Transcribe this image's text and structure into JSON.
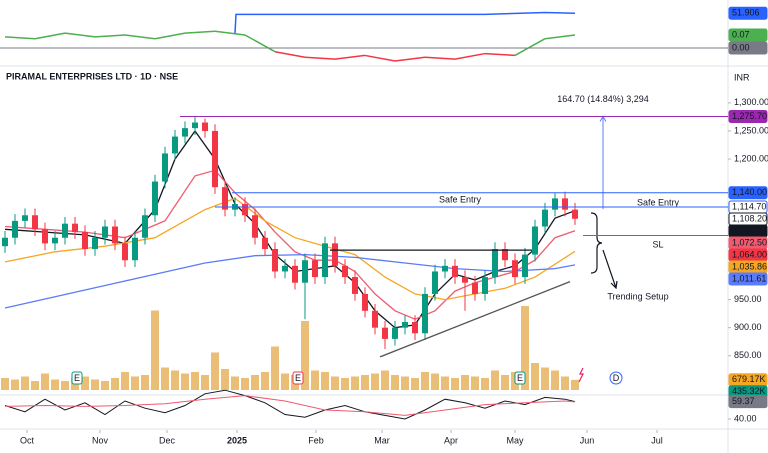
{
  "header": {
    "title": "PIRAMAL ENTERPRISES LTD · 1D · NSE",
    "currency": "INR"
  },
  "chart_data": [
    {
      "type": "candlestick",
      "up_color": "#089981",
      "down_color": "#f23645",
      "xlim": [
        -0.5,
        72.3
      ],
      "ylim": [
        830,
        1330
      ],
      "xticks": [
        {
          "value": 2.2,
          "label": "Oct"
        },
        {
          "value": 9.5,
          "label": "Nov"
        },
        {
          "value": 16.2,
          "label": "Dec"
        },
        {
          "value": 23.2,
          "label": "2025"
        },
        {
          "value": 31.1,
          "label": "Feb"
        },
        {
          "value": 37.7,
          "label": "Mar"
        },
        {
          "value": 44.6,
          "label": "Apr"
        },
        {
          "value": 51,
          "label": "May"
        },
        {
          "value": 58.2,
          "label": "Jun"
        },
        {
          "value": 65.2,
          "label": "Jul"
        }
      ],
      "yticks": [
        {
          "value": 1300,
          "label": "1,300.00"
        },
        {
          "value": 1250,
          "label": "1,250.00"
        },
        {
          "value": 1200,
          "label": "1,200.00"
        },
        {
          "value": 950,
          "label": "950.00"
        },
        {
          "value": 900,
          "label": "900.00"
        },
        {
          "value": 850,
          "label": "850.00"
        }
      ],
      "ohlc": [
        [
          1045,
          1072,
          1033,
          1060
        ],
        [
          1060,
          1102,
          1048,
          1090
        ],
        [
          1090,
          1112,
          1078,
          1100
        ],
        [
          1100,
          1112,
          1063,
          1075
        ],
        [
          1075,
          1087,
          1038,
          1050
        ],
        [
          1050,
          1072,
          1038,
          1060
        ],
        [
          1060,
          1097,
          1048,
          1085
        ],
        [
          1085,
          1097,
          1058,
          1070
        ],
        [
          1070,
          1082,
          1028,
          1040
        ],
        [
          1040,
          1072,
          1028,
          1060
        ],
        [
          1060,
          1092,
          1048,
          1080
        ],
        [
          1080,
          1092,
          1038,
          1050
        ],
        [
          1050,
          1062,
          1008,
          1020
        ],
        [
          1020,
          1072,
          1008,
          1060
        ],
        [
          1060,
          1112,
          1048,
          1100
        ],
        [
          1100,
          1172,
          1088,
          1160
        ],
        [
          1160,
          1222,
          1148,
          1210
        ],
        [
          1210,
          1252,
          1198,
          1240
        ],
        [
          1240,
          1267,
          1228,
          1255
        ],
        [
          1255,
          1275.7,
          1243,
          1265
        ],
        [
          1265,
          1272,
          1238,
          1250
        ],
        [
          1250,
          1262,
          1138,
          1150
        ],
        [
          1150,
          1162,
          1098,
          1110
        ],
        [
          1110,
          1132,
          1098,
          1120
        ],
        [
          1120,
          1132,
          1088,
          1100
        ],
        [
          1100,
          1112,
          1048,
          1060
        ],
        [
          1060,
          1072,
          1028,
          1040
        ],
        [
          1040,
          1052,
          988,
          1000
        ],
        [
          1000,
          1022,
          988,
          1010
        ],
        [
          1010,
          1022,
          968,
          980
        ],
        [
          980,
          1032,
          915,
          1020
        ],
        [
          1020,
          1032,
          978,
          990
        ],
        [
          990,
          1062,
          978,
          1050
        ],
        [
          1050,
          1062,
          998,
          1010
        ],
        [
          1010,
          1022,
          978,
          990
        ],
        [
          990,
          1002,
          948,
          960
        ],
        [
          960,
          972,
          918,
          930
        ],
        [
          930,
          942,
          888,
          900
        ],
        [
          900,
          912,
          862,
          880
        ],
        [
          880,
          912,
          868,
          900
        ],
        [
          900,
          922,
          888,
          910
        ],
        [
          910,
          922,
          878,
          890
        ],
        [
          890,
          972,
          878,
          960
        ],
        [
          960,
          1012,
          948,
          1000
        ],
        [
          1000,
          1022,
          988,
          1010
        ],
        [
          1010,
          1022,
          978,
          990
        ],
        [
          990,
          1002,
          930,
          980
        ],
        [
          980,
          992,
          948,
          960
        ],
        [
          960,
          1002,
          948,
          990
        ],
        [
          990,
          1052,
          978,
          1040
        ],
        [
          1040,
          1052,
          1008,
          1020
        ],
        [
          1020,
          1032,
          978,
          990
        ],
        [
          990,
          1042,
          978,
          1030
        ],
        [
          1030,
          1092,
          1018,
          1080
        ],
        [
          1080,
          1122,
          1068,
          1110
        ],
        [
          1110,
          1140,
          1098,
          1130
        ],
        [
          1130,
          1142,
          1098,
          1110
        ],
        [
          1110,
          1122,
          1083,
          1093.77
        ]
      ],
      "series": [
        {
          "color": "#131722",
          "x": [
            0,
            4,
            8,
            12,
            15,
            17,
            19,
            21,
            23,
            25,
            27,
            29,
            31,
            33,
            35,
            37,
            39,
            41,
            43,
            45,
            47,
            49,
            51,
            53,
            55,
            57
          ],
          "values": [
            1075,
            1070,
            1065,
            1050,
            1110,
            1200,
            1250,
            1200,
            1120,
            1085,
            1030,
            1000,
            1005,
            1010,
            980,
            930,
            900,
            905,
            960,
            995,
            985,
            1000,
            1010,
            1040,
            1095,
            1108.2
          ]
        },
        {
          "color": "#f05a6e",
          "x": [
            0,
            4,
            8,
            12,
            16,
            19,
            21,
            23,
            25,
            27,
            29,
            31,
            33,
            35,
            37,
            39,
            41,
            43,
            45,
            47,
            49,
            51,
            53,
            55,
            57
          ],
          "values": [
            1080,
            1075,
            1070,
            1060,
            1090,
            1170,
            1180,
            1140,
            1110,
            1070,
            1035,
            1020,
            1020,
            1000,
            960,
            930,
            915,
            930,
            965,
            980,
            990,
            1000,
            1020,
            1060,
            1072.5
          ]
        },
        {
          "color": "#f5a623",
          "x": [
            0,
            5,
            10,
            15,
            20,
            23,
            26,
            29,
            32,
            35,
            38,
            41,
            44,
            47,
            50,
            53,
            57
          ],
          "values": [
            1017,
            1035,
            1045,
            1060,
            1110,
            1130,
            1090,
            1060,
            1045,
            1030,
            990,
            960,
            950,
            960,
            970,
            990,
            1035.86
          ]
        },
        {
          "color": "#5b7cfa",
          "x": [
            0,
            5,
            10,
            15,
            20,
            25,
            30,
            35,
            40,
            45,
            50,
            55,
            57
          ],
          "values": [
            935,
            955,
            975,
            995,
            1015,
            1028,
            1030,
            1025,
            1015,
            1005,
            1000,
            1005,
            1011.61
          ]
        }
      ],
      "trendlines": [
        {
          "color": "#131722",
          "x": [
            32.5,
            52.7
          ],
          "values": [
            1038,
            1038
          ]
        },
        {
          "color": "#555555",
          "x": [
            37.5,
            56.5
          ],
          "values": [
            848,
            982
          ]
        }
      ],
      "measure": {
        "label": "164.70 (14.84%) 3,294",
        "x": 59.8,
        "values": [
          1111,
          1275.7
        ],
        "color": "#5b7cfa"
      },
      "annotations": [
        {
          "text": "Safe Entry",
          "color": "#2962ff"
        },
        {
          "text": "Safe Entry",
          "color": "#2962ff"
        },
        {
          "text": "SL",
          "color": "#f23645"
        },
        {
          "text": "Trending Setup",
          "color": "#2962ff"
        }
      ],
      "price_labels": [
        {
          "value": 1275.7,
          "label": "1,275.70",
          "color": "#9c27b0"
        },
        {
          "value": 1140,
          "label": "1,140.00",
          "color": "#2962ff"
        },
        {
          "value": 1114.7,
          "label": "1,114.70",
          "color": "#2962ff",
          "fill": "#ffffff",
          "text_color": "#2962ff"
        },
        {
          "value": 1108.2,
          "label": "1,108.20",
          "color": "#131722",
          "fill": "#ffffff",
          "text_color": "#131722"
        },
        {
          "value": 1093.77,
          "label": "1,093.77",
          "color": "#131722"
        },
        {
          "value": 1072.5,
          "label": "1,072.50",
          "color": "#f05a6e"
        },
        {
          "value": 1064,
          "label": "1,064.00",
          "color": "#f23645"
        },
        {
          "value": 1035.86,
          "label": "1,035.86",
          "color": "#f5a623"
        },
        {
          "value": 1011.61,
          "label": "1,011.61",
          "color": "#5b7cfa"
        }
      ]
    },
    {
      "type": "bar",
      "color": "#e3a84a",
      "ylim": [
        0,
        6000000
      ],
      "values": [
        800000,
        700000,
        900000,
        600000,
        1100000,
        700000,
        600000,
        800000,
        900000,
        700000,
        600000,
        800000,
        1200000,
        900000,
        1000000,
        5300000,
        1500000,
        1300000,
        1100000,
        1200000,
        1000000,
        2500000,
        1400000,
        900000,
        800000,
        1000000,
        1200000,
        2900000,
        1100000,
        1000000,
        4600000,
        1300000,
        1200000,
        900000,
        800000,
        900000,
        1000000,
        1100000,
        1300000,
        1000000,
        900000,
        800000,
        1200000,
        1100000,
        900000,
        800000,
        1000000,
        900000,
        800000,
        1300000,
        1000000,
        1200000,
        5600000,
        1800000,
        1500000,
        1300000,
        900000,
        679170
      ],
      "events": [
        {
          "x": 7.2,
          "label": "E",
          "color": "#089981"
        },
        {
          "x": 29.3,
          "label": "E",
          "color": "#f23645"
        },
        {
          "x": 51.5,
          "label": "E",
          "color": "#089981"
        },
        {
          "x": 61.1,
          "label": "D",
          "color": "#2962ff"
        }
      ],
      "price_labels": [
        {
          "value": 679170,
          "label": "679.17K",
          "color": "#f5a623"
        },
        {
          "value": 435320,
          "label": "435.32K",
          "color": "#089981"
        }
      ]
    },
    {
      "type": "line",
      "ylim": [
        30,
        75
      ],
      "yticks": [
        {
          "value": 40,
          "label": "40.00"
        }
      ],
      "series": [
        {
          "color": "#131722",
          "x": [
            0,
            2,
            4,
            6,
            8,
            10,
            12,
            14,
            16,
            18,
            20,
            22,
            24,
            26,
            28,
            30,
            32,
            34,
            36,
            38,
            40,
            42,
            44,
            46,
            48,
            50,
            52,
            54,
            56,
            57
          ],
          "values": [
            55,
            48,
            62,
            50,
            58,
            45,
            60,
            52,
            47,
            55,
            68,
            72,
            66,
            58,
            45,
            42,
            50,
            55,
            48,
            44,
            40,
            50,
            62,
            58,
            52,
            60,
            56,
            64,
            62,
            59.37
          ]
        },
        {
          "color": "#f05a6e",
          "x": [
            0,
            4,
            8,
            12,
            16,
            20,
            24,
            28,
            32,
            36,
            40,
            44,
            48,
            52,
            56,
            57
          ],
          "values": [
            54,
            55,
            54,
            55,
            57,
            62,
            66,
            60,
            50,
            48,
            44,
            50,
            56,
            58,
            60,
            59
          ]
        }
      ],
      "price_labels": [
        {
          "value": 59.37,
          "label": "59.37",
          "color": "#787b86"
        }
      ]
    },
    {
      "type": "oscillator",
      "ylim": [
        -0.1,
        0.15
      ],
      "y2lim": [
        51.7,
        51.95
      ],
      "pos_color": "#4caf50",
      "neg_color": "#f23645",
      "series": [
        {
          "x": [
            0,
            3,
            6,
            9,
            12,
            15,
            18,
            21,
            24,
            27,
            30,
            33,
            36,
            39,
            42,
            45,
            48,
            51,
            54,
            57
          ],
          "values": [
            0.06,
            0.05,
            0.08,
            0.06,
            0.07,
            0.05,
            0.08,
            0.09,
            0.07,
            -0.02,
            -0.05,
            -0.06,
            -0.04,
            -0.07,
            -0.05,
            -0.06,
            -0.03,
            -0.04,
            0.05,
            0.07
          ]
        },
        {
          "axis": "y2",
          "color": "#2962ff",
          "x": [
            23,
            23.1,
            30,
            36,
            42,
            48,
            54,
            57
          ],
          "values": [
            51.8,
            51.9,
            51.9,
            51.9,
            51.9,
            51.9,
            51.91,
            51.906
          ]
        }
      ],
      "price_labels": [
        {
          "value": 51.906,
          "label": "51.906",
          "color": "#2962ff",
          "axis": "y2"
        },
        {
          "value": 0.07,
          "label": "0.07",
          "color": "#4caf50"
        },
        {
          "value": 0,
          "label": "0.00",
          "color": "#787b86"
        }
      ]
    }
  ]
}
